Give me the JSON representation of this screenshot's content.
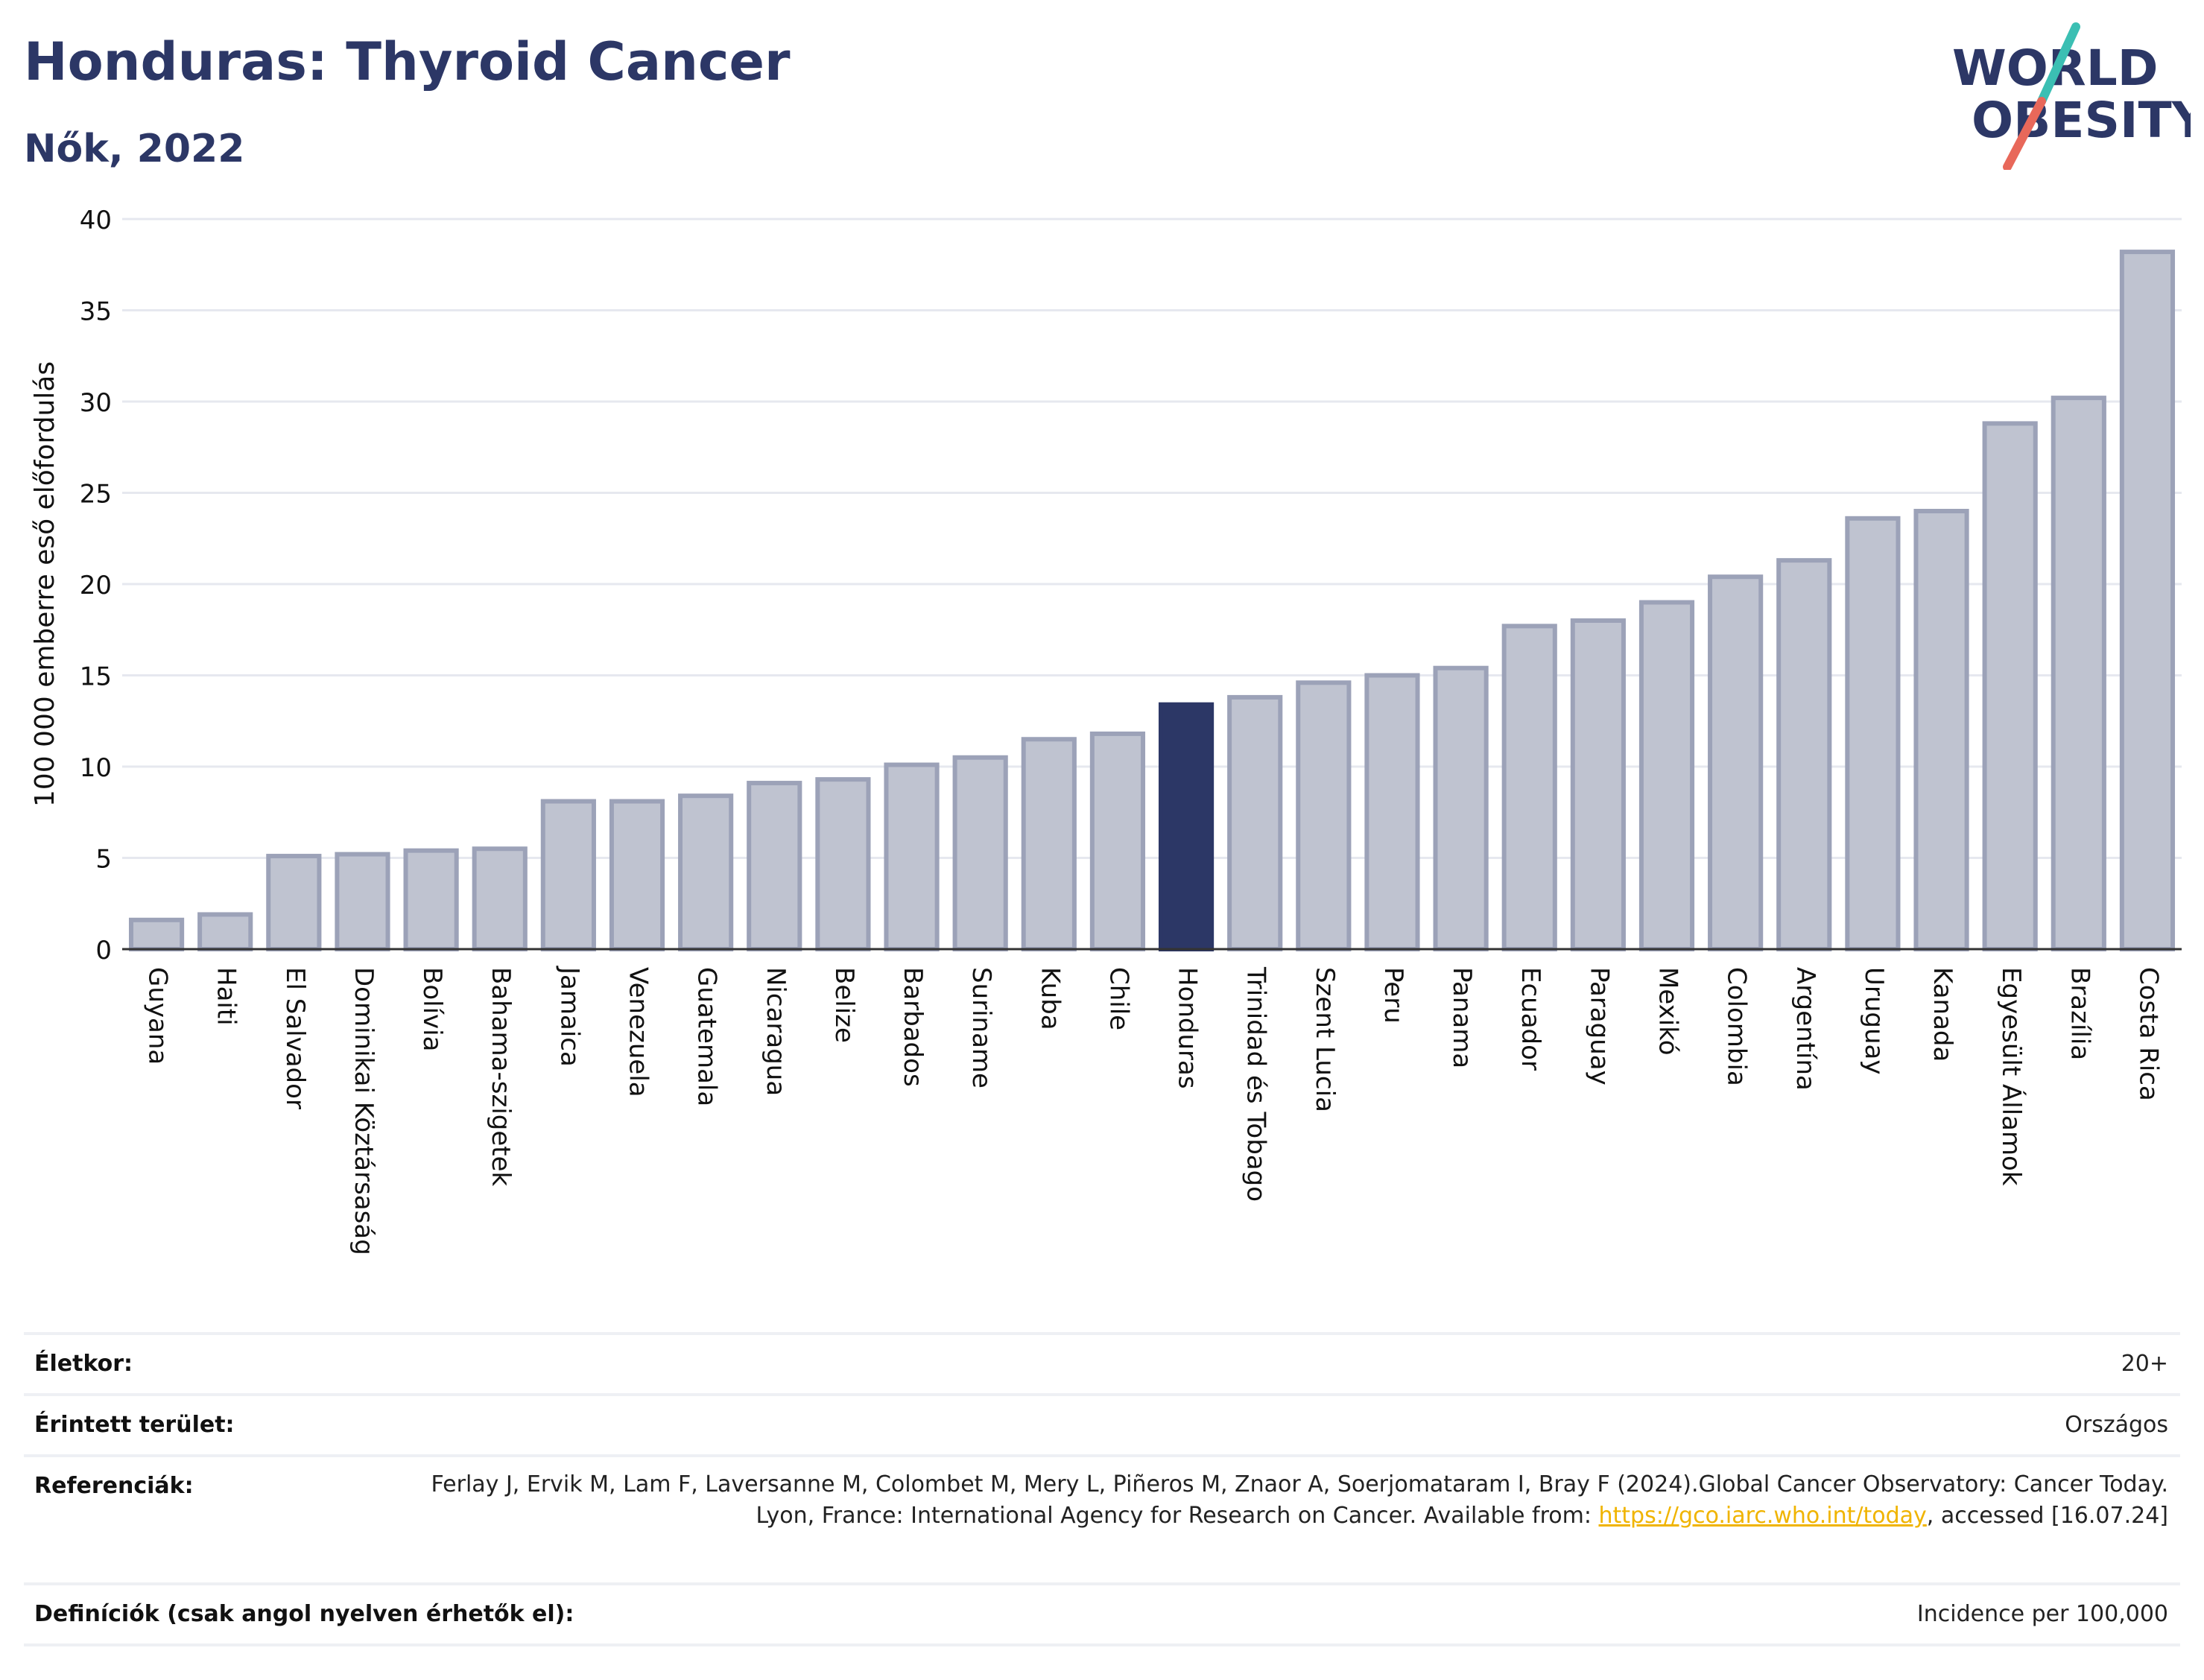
{
  "header": {
    "title": "Honduras: Thyroid Cancer",
    "subtitle": "Nők, 2022"
  },
  "logo": {
    "line1": "WORLD",
    "line2": "OBESITY",
    "colors": {
      "text": "#2c3766",
      "slash_top": "#3bbfb3",
      "slash_bottom": "#e8685a"
    }
  },
  "colors": {
    "bar_fill": "#bfc3d0",
    "bar_stroke": "#9ca2b8",
    "highlight": "#2c3766",
    "grid": "#e6e8ef"
  },
  "chart_data": {
    "type": "bar",
    "ylabel": "100 000 emberre eső előfordulás",
    "xlabel": "",
    "ylim": [
      0,
      40
    ],
    "yticks": [
      0,
      5,
      10,
      15,
      20,
      25,
      30,
      35,
      40
    ],
    "grid": true,
    "highlight": "Honduras",
    "categories": [
      "Guyana",
      "Haiti",
      "El Salvador",
      "Dominikai Köztársaság",
      "Bolívia",
      "Bahama-szigetek",
      "Jamaica",
      "Venezuela",
      "Guatemala",
      "Nicaragua",
      "Belize",
      "Barbados",
      "Suriname",
      "Kuba",
      "Chile",
      "Honduras",
      "Trinidad és Tobago",
      "Szent Lucia",
      "Peru",
      "Panama",
      "Ecuador",
      "Paraguay",
      "Mexikó",
      "Colombia",
      "Argentína",
      "Uruguay",
      "Kanada",
      "Egyesült Államok",
      "Brazília",
      "Costa Rica"
    ],
    "values": [
      1.6,
      1.9,
      5.1,
      5.2,
      5.4,
      5.5,
      8.1,
      8.1,
      8.4,
      9.1,
      9.3,
      10.1,
      10.5,
      11.5,
      11.8,
      13.4,
      13.8,
      14.6,
      15.0,
      15.4,
      17.7,
      18.0,
      19.0,
      20.4,
      21.3,
      23.6,
      24.0,
      28.8,
      30.2,
      38.2
    ]
  },
  "info": {
    "age_label": "Életkor:",
    "age_value": "20+",
    "area_label": "Érintett terület:",
    "area_value": "Országos",
    "ref_label": "Referenciák:",
    "ref_text_1": "Ferlay J, Ervik M, Lam F, Laversanne M, Colombet M, Mery L, Piñeros M, Znaor A, Soerjomataram I, Bray F (2024).Global Cancer Observatory: Cancer Today. Lyon, France: International Agency for Research on Cancer. Available from: ",
    "ref_link": "https://gco.iarc.who.int/today",
    "ref_text_2": ", accessed [16.07.24]",
    "def_label": "Definíciók (csak angol nyelven érhetők el):",
    "def_value": "Incidence per 100,000"
  }
}
